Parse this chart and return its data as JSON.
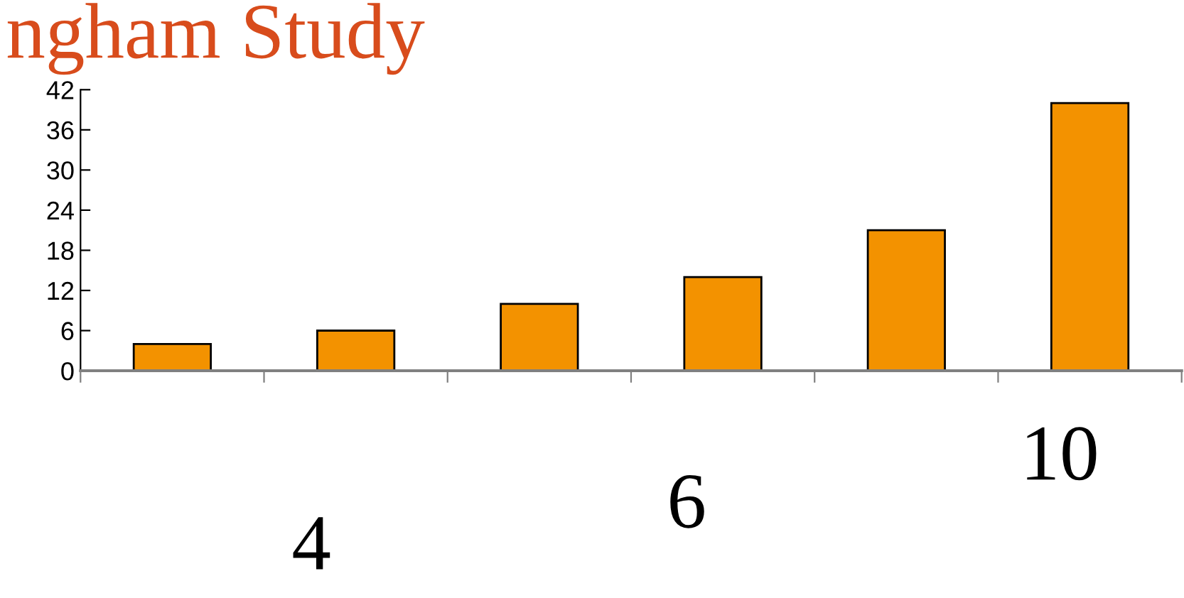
{
  "chart_data": {
    "type": "bar",
    "title": "ngham Study",
    "categories": [
      null,
      null,
      null,
      null,
      null,
      null
    ],
    "values": [
      4,
      6,
      10,
      14,
      21,
      40
    ],
    "color": "#f39200",
    "ylim": [
      0,
      42
    ],
    "yticks": [
      0,
      6,
      12,
      18,
      24,
      30,
      36,
      42
    ],
    "grid": false,
    "legend": false,
    "annotations": [
      "4",
      "6",
      "10"
    ]
  }
}
